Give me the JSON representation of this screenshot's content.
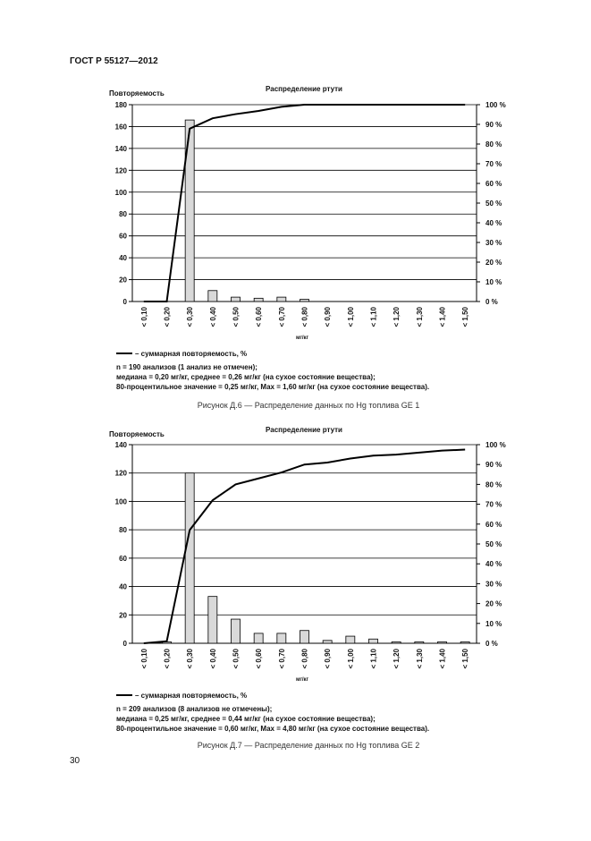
{
  "header": "ГОСТ Р 55127—2012",
  "page_number": "30",
  "chart_data": [
    {
      "type": "bar_line",
      "title": "Распределение ртути",
      "ylabel": "Повторяемость",
      "xlabel": "мг/кг",
      "categories": [
        "< 0,10",
        "< 0,20",
        "< 0,30",
        "< 0,40",
        "< 0,50",
        "< 0,60",
        "< 0,70",
        "< 0,80",
        "< 0,90",
        "< 1,00",
        "< 1,10",
        "< 1,20",
        "< 1,30",
        "< 1,40",
        "< 1,50"
      ],
      "series": [
        {
          "type": "bar",
          "color": "#d9d9d9",
          "values": [
            0,
            0,
            166,
            10,
            4,
            3,
            4,
            2,
            0,
            0,
            0,
            0,
            0,
            0,
            0
          ]
        },
        {
          "type": "line",
          "name": "– суммарная повторяемость, %",
          "color": "#000000",
          "axis": "y2",
          "values": [
            0,
            0,
            87.8,
            93.1,
            95.2,
            96.8,
            98.9,
            100,
            100,
            100,
            100,
            100,
            100,
            100,
            100
          ]
        }
      ],
      "ylim": [
        0,
        180
      ],
      "yticks": [
        0,
        20,
        40,
        60,
        80,
        100,
        120,
        140,
        160,
        180
      ],
      "y2lim": [
        0,
        100
      ],
      "y2ticks": [
        {
          "value": 0,
          "label": "0 %"
        },
        {
          "value": 10,
          "label": "10 %"
        },
        {
          "value": 20,
          "label": "20 %"
        },
        {
          "value": 30,
          "label": "30 %"
        },
        {
          "value": 40,
          "label": "40 %"
        },
        {
          "value": 50,
          "label": "50 %"
        },
        {
          "value": 60,
          "label": "60 %"
        },
        {
          "value": 70,
          "label": "70 %"
        },
        {
          "value": 80,
          "label": "80 %"
        },
        {
          "value": 90,
          "label": "90 %"
        },
        {
          "value": 100,
          "label": "100 %"
        }
      ],
      "grid": true,
      "notes": [
        "n = 190 анализов (1 анализ не отмечен);",
        "медиана = 0,20 мг/кг, среднее = 0,26 мг/кг (на сухое состояние вещества);",
        "80-процентильное значение = 0,25 мг/кг, Max = 1,60 мг/кг (на сухое состояние вещества)."
      ],
      "caption": "Рисунок Д.6 — Распределение данных по Hg топлива GE 1"
    },
    {
      "type": "bar_line",
      "title": "Распределение ртути",
      "ylabel": "Повторяемость",
      "xlabel": "мг/кг",
      "categories": [
        "< 0,10",
        "< 0,20",
        "< 0,30",
        "< 0,40",
        "< 0,50",
        "< 0,60",
        "< 0,70",
        "< 0,80",
        "< 0,90",
        "< 1,00",
        "< 1,10",
        "< 1,20",
        "< 1,30",
        "< 1,40",
        "< 1,50"
      ],
      "series": [
        {
          "type": "bar",
          "color": "#d9d9d9",
          "values": [
            0,
            1,
            120,
            33,
            17,
            7,
            7,
            9,
            2,
            5,
            3,
            1,
            1,
            1,
            1
          ]
        },
        {
          "type": "line",
          "name": "– суммарная повторяемость, %",
          "color": "#000000",
          "axis": "y2",
          "values": [
            0,
            1,
            57,
            72,
            80,
            83,
            86,
            90,
            91,
            93,
            94.5,
            95,
            96,
            97,
            97.5
          ]
        }
      ],
      "ylim": [
        0,
        140
      ],
      "yticks": [
        0,
        20,
        40,
        60,
        80,
        100,
        120,
        140
      ],
      "y2lim": [
        0,
        100
      ],
      "y2ticks": [
        {
          "value": 0,
          "label": "0 %"
        },
        {
          "value": 10,
          "label": "10 %"
        },
        {
          "value": 20,
          "label": "20 %"
        },
        {
          "value": 30,
          "label": "30 %"
        },
        {
          "value": 40,
          "label": "40 %"
        },
        {
          "value": 50,
          "label": "50 %"
        },
        {
          "value": 60,
          "label": "60 %"
        },
        {
          "value": 70,
          "label": "70 %"
        },
        {
          "value": 80,
          "label": "80 %"
        },
        {
          "value": 90,
          "label": "90 %"
        },
        {
          "value": 100,
          "label": "100 %"
        }
      ],
      "grid": true,
      "notes": [
        "n = 209 анализов (8 анализов не отмечены);",
        "медиана = 0,25 мг/кг, среднее = 0,44 мг/кг (на сухое состояние вещества);",
        "80-процентильное значение = 0,60 мг/кг, Max = 4,80 мг/кг (на сухое состояние вещества)."
      ],
      "caption": "Рисунок Д.7 — Распределение данных по Hg топлива GE 2"
    }
  ]
}
